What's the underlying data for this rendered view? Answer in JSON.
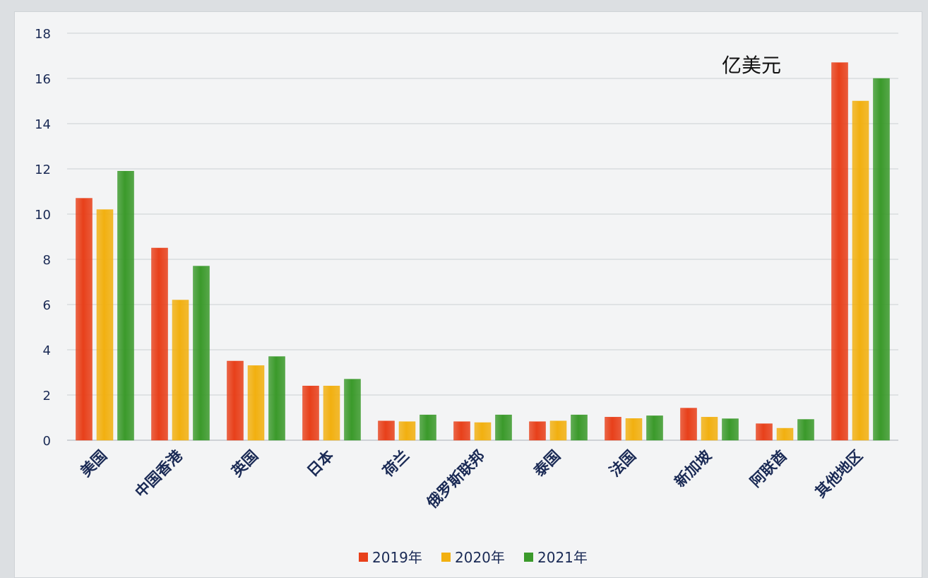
{
  "chart_data": {
    "type": "bar",
    "unit_label": "亿美元",
    "categories": [
      "美国",
      "中国香港",
      "英国",
      "日本",
      "荷兰",
      "俄罗斯联邦",
      "泰国",
      "法国",
      "新加坡",
      "阿联酋",
      "其他地区"
    ],
    "series": [
      {
        "name": "2019年",
        "color": "#e8401a",
        "values": [
          10.7,
          8.5,
          3.5,
          2.4,
          0.85,
          0.82,
          0.82,
          1.02,
          1.42,
          0.73,
          16.7
        ]
      },
      {
        "name": "2020年",
        "color": "#f2b010",
        "values": [
          10.2,
          6.2,
          3.3,
          2.4,
          0.82,
          0.78,
          0.85,
          0.96,
          1.02,
          0.53,
          15.0
        ]
      },
      {
        "name": "2021年",
        "color": "#3b9a2b",
        "values": [
          11.9,
          7.7,
          3.7,
          2.7,
          1.12,
          1.12,
          1.12,
          1.08,
          0.95,
          0.92,
          16.0
        ]
      }
    ],
    "yticks": [
      0,
      2,
      4,
      6,
      8,
      10,
      12,
      14,
      16,
      18
    ],
    "ylim": [
      0,
      18
    ],
    "grid": true,
    "legend_position": "bottom"
  }
}
